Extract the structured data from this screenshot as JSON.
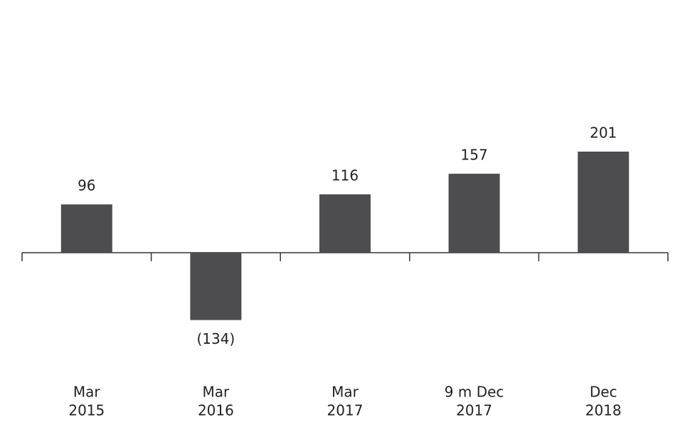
{
  "chart_data": {
    "type": "bar",
    "categories": [
      [
        "Mar",
        "2015"
      ],
      [
        "Mar",
        "2016"
      ],
      [
        "Mar",
        "2017"
      ],
      [
        "9 m Dec",
        "2017"
      ],
      [
        "Dec",
        "2018"
      ]
    ],
    "values": [
      96,
      -134,
      116,
      157,
      201
    ],
    "value_labels": [
      "96",
      "(134)",
      "116",
      "157",
      "201"
    ],
    "color": "#4d4d4f"
  }
}
